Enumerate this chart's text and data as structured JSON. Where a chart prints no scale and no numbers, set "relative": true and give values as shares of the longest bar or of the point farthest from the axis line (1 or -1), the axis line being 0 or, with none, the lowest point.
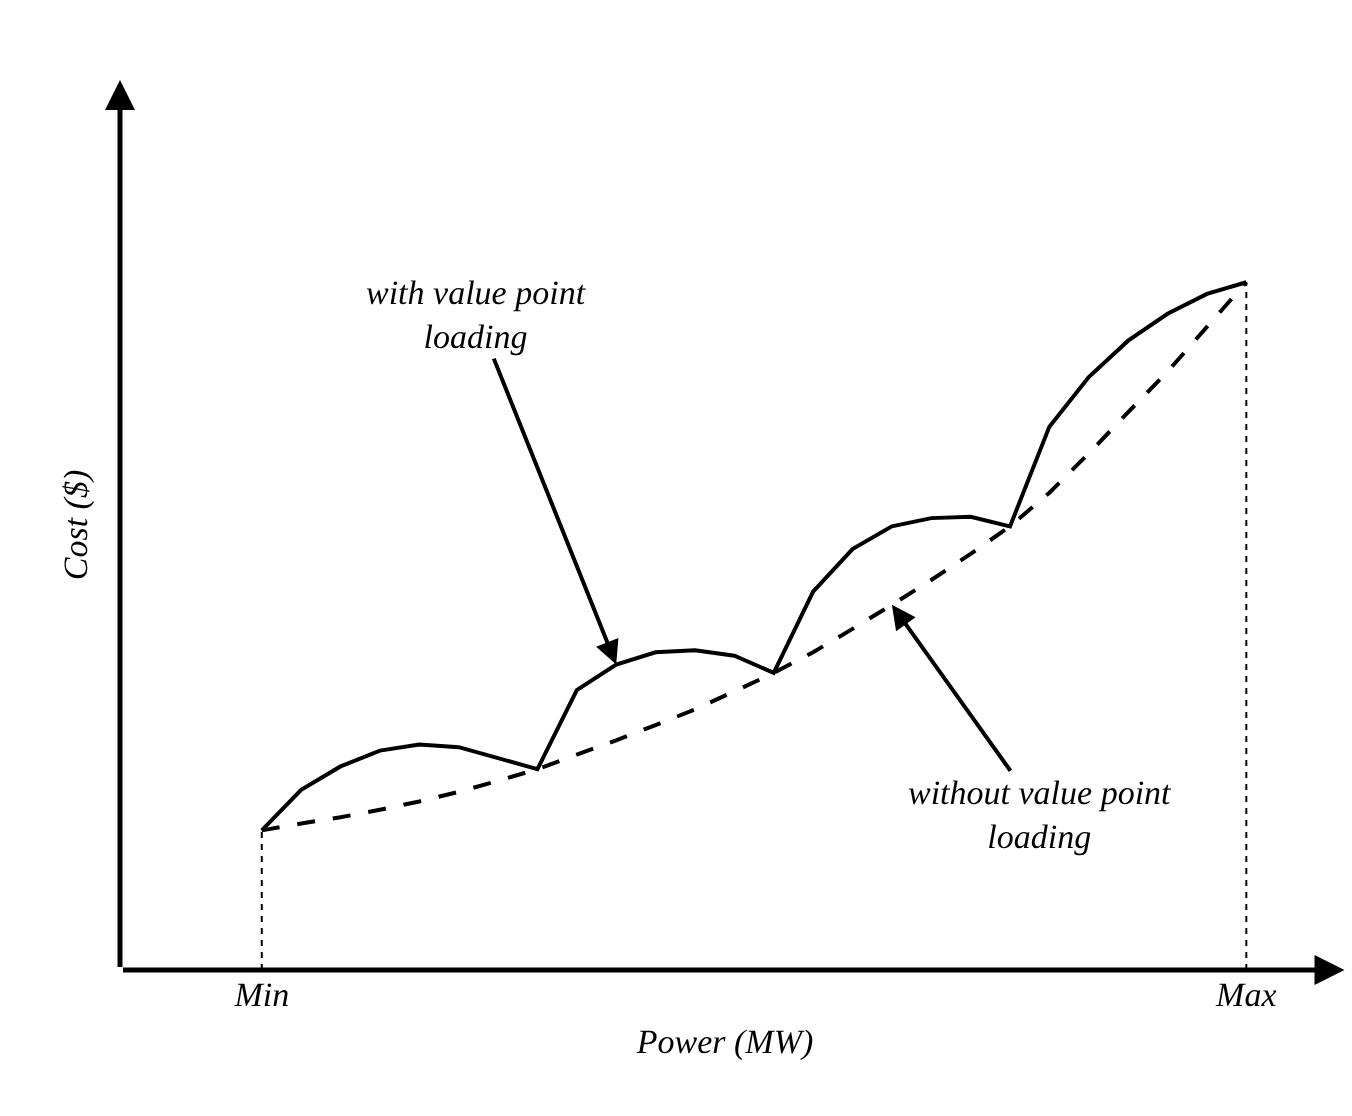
{
  "chart_data": {
    "type": "line",
    "relative": true,
    "xlabel": "Power (MW)",
    "ylabel": "Cost ($)",
    "categories": [
      "Min",
      null,
      null,
      null,
      null,
      null,
      null,
      null,
      null,
      null,
      null,
      null,
      null,
      null,
      null,
      null,
      null,
      null,
      null,
      null,
      null,
      null,
      null,
      null,
      null,
      "Max"
    ],
    "marker": "none",
    "ref_lines": [
      {
        "axis": "x",
        "value": "Min",
        "line_style": "dotted",
        "color": "#000000"
      },
      {
        "axis": "x",
        "value": "Max",
        "line_style": "dotted",
        "color": "#000000"
      }
    ],
    "series": [
      {
        "color": "#000000",
        "line_style": "solid",
        "values": [
          0.203,
          0.262,
          0.296,
          0.319,
          0.328,
          0.324,
          0.308,
          0.292,
          0.407,
          0.444,
          0.462,
          0.465,
          0.457,
          0.432,
          0.55,
          0.612,
          0.645,
          0.657,
          0.659,
          0.645,
          0.79,
          0.862,
          0.915,
          0.954,
          0.983,
          1.0
        ]
      },
      {
        "color": "#000000",
        "line_style": "dashed",
        "values": [
          0.203,
          0.213,
          0.222,
          0.233,
          0.245,
          0.259,
          0.275,
          0.292,
          0.313,
          0.334,
          0.356,
          0.379,
          0.405,
          0.432,
          0.462,
          0.496,
          0.531,
          0.567,
          0.605,
          0.645,
          0.694,
          0.751,
          0.811,
          0.87,
          0.935,
          1.0
        ]
      }
    ],
    "annotations": [
      "with value point\nloading",
      "without value point\nloading"
    ]
  }
}
